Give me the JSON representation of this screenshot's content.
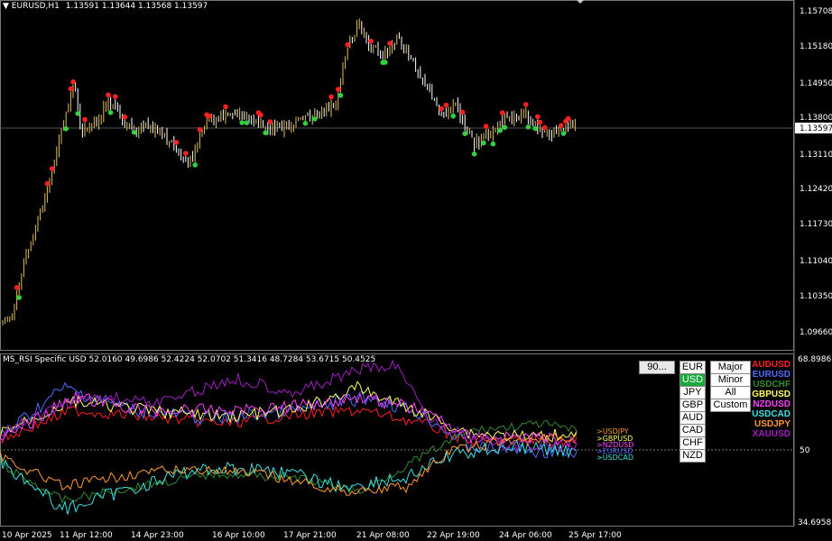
{
  "main_header": {
    "arrow": "▼",
    "symbol": "EURUSD,H1",
    "ohlc": "1.13591 1.13644 1.13568 1.13597"
  },
  "price_axis": {
    "ticks": [
      "1.15708",
      "1.15180",
      "1.14950",
      "1.13800",
      "1.13110",
      "1.12420",
      "1.11730",
      "1.11040",
      "1.10350",
      "1.09660"
    ],
    "current": "1.13597"
  },
  "indicator": {
    "header": "MS_RSI Specific USD 52.0160 49.6986 52.4224 52.0702 51.3416 48.7284 53.6715 50.4525",
    "ticks": [
      "68.8986",
      "50",
      "34.6958"
    ],
    "period_value": "90...",
    "currency_buttons": [
      {
        "label": "EUR",
        "active": false
      },
      {
        "label": "USD",
        "active": true
      },
      {
        "label": "JPY",
        "active": false
      },
      {
        "label": "GBP",
        "active": false
      },
      {
        "label": "AUD",
        "active": false
      },
      {
        "label": "CAD",
        "active": false
      },
      {
        "label": "CHF",
        "active": false
      },
      {
        "label": "NZD",
        "active": false
      }
    ],
    "group_buttons": [
      "Major",
      "Minor",
      "All",
      "Custom"
    ],
    "legend": [
      {
        "label": "AUDUSD",
        "color": "#ff2020"
      },
      {
        "label": "EURUSD",
        "color": "#4f6cff"
      },
      {
        "label": "USDCHF",
        "color": "#2e8b2e"
      },
      {
        "label": "GBPUSD",
        "color": "#ffff60"
      },
      {
        "label": "NZDUSD",
        "color": "#ff40ff"
      },
      {
        "label": "USDCAD",
        "color": "#40e0e0"
      },
      {
        "label": "USDJPY",
        "color": "#ff9a30"
      },
      {
        "label": "XAUUSD",
        "color": "#a020c0"
      }
    ],
    "line_labels": [
      {
        "label": ">USDJPY",
        "color": "#ff9a30"
      },
      {
        "label": ">GBPUSD",
        "color": "#ffff60"
      },
      {
        "label": ">NZDUSD",
        "color": "#ff40ff"
      },
      {
        "label": ">EURUSD",
        "color": "#4f6cff"
      },
      {
        "label": ">USDCAD",
        "color": "#40e0e0"
      }
    ]
  },
  "time_axis": [
    "10 Apr 2025",
    "11 Apr 12:00",
    "14 Apr 23:00",
    "16 Apr 10:00",
    "17 Apr 21:00",
    "21 Apr 08:00",
    "22 Apr 19:00",
    "24 Apr 06:00",
    "25 Apr 17:00"
  ],
  "colors": {
    "background": "#000000",
    "bull_candle": "#e0c060",
    "bear_candle": "#ffffff",
    "up_dot": "#ff2020",
    "down_dot": "#30d040"
  }
}
